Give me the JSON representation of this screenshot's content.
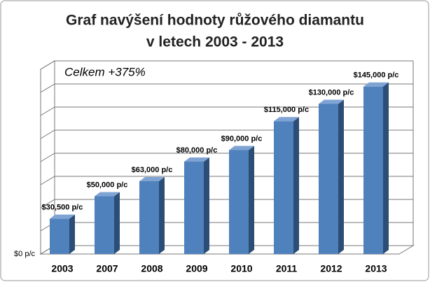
{
  "chart_data": {
    "type": "bar3d",
    "title": [
      "Graf navýšení hodnoty růžového diamantu",
      "v letech 2003 - 2013"
    ],
    "annotation": "Celkem +375%",
    "categories": [
      "2003",
      "2007",
      "2008",
      "2009",
      "2010",
      "2011",
      "2012",
      "2013"
    ],
    "values": [
      30500,
      50000,
      63000,
      80000,
      90000,
      115000,
      130000,
      145000
    ],
    "value_labels": [
      "$30,500 p/c",
      "$50,000 p/c",
      "$63,000 p/c",
      "$80,000 p/c",
      "$90,000 p/c",
      "$115,000 p/c",
      "$130,000 p/c",
      "$145,000 p/c"
    ],
    "color": "#4f81bd",
    "ylim": [
      0,
      160000
    ],
    "yticks": [
      {
        "value": 0,
        "label": "$0 p/c"
      },
      {
        "value": 20000,
        "label": null
      },
      {
        "value": 40000,
        "label": null
      },
      {
        "value": 60000,
        "label": null
      },
      {
        "value": 80000,
        "label": null
      },
      {
        "value": 100000,
        "label": null
      },
      {
        "value": 120000,
        "label": null
      },
      {
        "value": 140000,
        "label": null
      },
      {
        "value": 160000,
        "label": null
      }
    ],
    "grid": true
  }
}
